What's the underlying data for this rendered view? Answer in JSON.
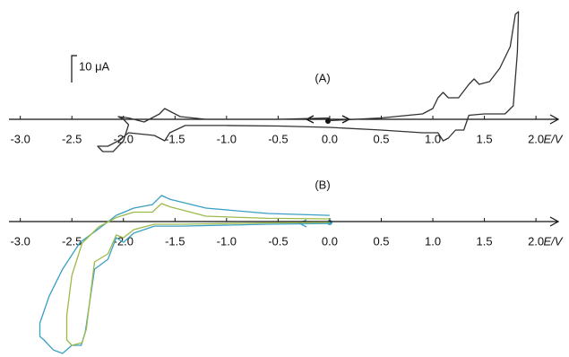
{
  "chart_data": [
    {
      "type": "line",
      "annotation": "(A)",
      "xlabel": "E/V",
      "xlim": [
        -3.11,
        2.19
      ],
      "ylim": [
        -14,
        40
      ],
      "xticks": [
        {
          "value": -3,
          "label": "-3.0"
        },
        -2.5,
        {
          "value": -2,
          "label": "-2.0"
        },
        -1.5,
        {
          "value": -1,
          "label": "-1.0"
        },
        -0.5,
        {
          "value": 0,
          "label": "0.0"
        },
        0.5,
        {
          "value": 1,
          "label": "1.0"
        },
        1.5,
        {
          "value": 2,
          "label": "2.0"
        }
      ],
      "scale_bar": {
        "value": 10,
        "label": "10 μA"
      },
      "series": [
        {
          "color": "#333333",
          "x": [
            0.0,
            0.5,
            0.9,
            1.0,
            1.05,
            1.1,
            1.15,
            1.25,
            1.35,
            1.4,
            1.45,
            1.55,
            1.65,
            1.75,
            1.8,
            1.83,
            1.82,
            1.78,
            1.7,
            1.5,
            1.35,
            1.3,
            1.22,
            1.15,
            1.1,
            1.05,
            0.9,
            0.5,
            0.0,
            -0.5,
            -1.0,
            -1.4,
            -1.55,
            -1.6,
            -1.7,
            -1.95,
            -2.05,
            -2.15,
            -2.25,
            -2.2,
            -2.1,
            -2.0,
            -1.95,
            -2.0,
            -2.05,
            -1.95,
            -1.8,
            -1.65,
            -1.6,
            -1.55,
            -1.45,
            -1.2,
            -0.5,
            0.0
          ],
          "values": [
            -0.5,
            0.5,
            2,
            4,
            8,
            10,
            8,
            8,
            13,
            15,
            13,
            14,
            19,
            27,
            39,
            40,
            25,
            5,
            2,
            2,
            1.5,
            -4,
            -4,
            -7,
            -8,
            -5,
            -5,
            -4,
            -3,
            -2.5,
            -2.3,
            -2.3,
            -5,
            -8,
            -6,
            -5,
            -8,
            -10,
            -10,
            -12,
            -12,
            -8,
            -2,
            0,
            1,
            0.5,
            -1,
            2,
            4,
            3,
            1,
            0,
            0,
            0.5
          ]
        }
      ]
    },
    {
      "type": "line",
      "annotation": "(B)",
      "xlabel": "E/V",
      "xlim": [
        -3.11,
        2.19
      ],
      "ylim": [
        -50,
        10
      ],
      "xticks": [
        {
          "value": -3,
          "label": "-3.0"
        },
        -2.5,
        {
          "value": -2,
          "label": "-2.0"
        },
        -1.5,
        {
          "value": -1,
          "label": "-1.0"
        },
        -0.5,
        {
          "value": 0,
          "label": "0.0"
        },
        0.5,
        {
          "value": 1,
          "label": "1.0"
        },
        1.5,
        {
          "value": 2,
          "label": "2.0"
        }
      ],
      "series": [
        {
          "color": "#3a9fc4",
          "x": [
            0.0,
            -0.6,
            -1.45,
            -1.7,
            -1.9,
            -2.0,
            -2.07,
            -2.15,
            -2.28,
            -2.37,
            -2.41,
            -2.5,
            -2.59,
            -2.68,
            -2.77,
            -2.81,
            -2.81,
            -2.72,
            -2.59,
            -2.42,
            -2.24,
            -2.07,
            -1.9,
            -1.72,
            -1.63,
            -1.55,
            -1.2,
            -0.6,
            0.0
          ],
          "values": [
            -0.7,
            -1,
            -1.7,
            -1.7,
            -4.3,
            -7.7,
            -6,
            -14,
            -17.7,
            -41,
            -46,
            -46,
            -49,
            -47.7,
            -44,
            -42.7,
            -37.7,
            -27.7,
            -17.7,
            -7.7,
            -2.7,
            2.3,
            5,
            6.3,
            9.7,
            8.3,
            5,
            3,
            2.3
          ]
        },
        {
          "color": "#9cba4a",
          "x": [
            0.0,
            -0.6,
            -1.45,
            -1.7,
            -1.9,
            -2.0,
            -2.07,
            -2.15,
            -2.28,
            -2.36,
            -2.4,
            -2.5,
            -2.55,
            -2.55,
            -2.5,
            -2.4,
            -2.24,
            -2.07,
            -1.9,
            -1.72,
            -1.63,
            -1.55,
            -1.2,
            -0.6,
            0.0
          ],
          "values": [
            -0.3,
            -0.5,
            -1,
            -1,
            -3,
            -6,
            -5,
            -12,
            -15,
            -40,
            -45,
            -46,
            -44,
            -35,
            -20,
            -8,
            -2,
            1.5,
            3.5,
            3.5,
            6.7,
            5.5,
            2,
            1.2,
            1
          ]
        }
      ]
    }
  ]
}
